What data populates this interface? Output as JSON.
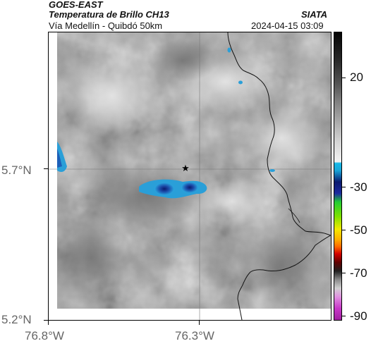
{
  "header": {
    "satellite": "GOES-EAST",
    "product": "Temperatura de Brillo CH13",
    "region": "Vía Medellín - Quibdó 50km",
    "agency": "SIATA",
    "timestamp": "2024-04-15 03:09"
  },
  "axes": {
    "lat_labels": [
      "5.7°N",
      "5.2°N"
    ],
    "lon_labels": [
      "76.8°W",
      "76.3°W"
    ]
  },
  "colorbar": {
    "labels": [
      "20",
      "-30",
      "-50",
      "-70",
      "-90"
    ],
    "colors": {
      "dark": "#111111",
      "cyan": "#1aa6d8",
      "blue": "#0a1a6e",
      "green": "#22cc33",
      "yellow": "#f5e800",
      "orange": "#ff6a00",
      "red": "#d40000",
      "magenta": "#c838c8"
    }
  },
  "map": {
    "marker": "star-icon",
    "background": "cloud-top-grayscale",
    "cold_cloud_color": "#1c5fb8"
  }
}
